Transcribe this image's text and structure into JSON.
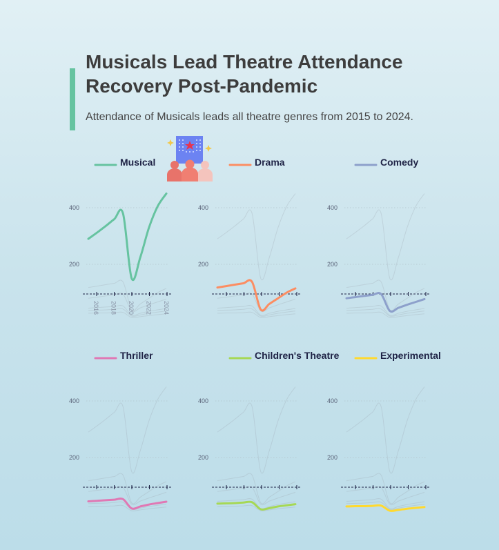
{
  "header": {
    "title": "Musicals Lead Theatre Attendance Recovery Post-Pandemic",
    "subtitle": "Attendance of Musicals leads all theatre genres from 2015 to 2024."
  },
  "illustration": {
    "icon": "theatre-audience-icon"
  },
  "chart_data": {
    "type": "line",
    "layout": "small-multiples",
    "x": [
      2015,
      2016,
      2017,
      2018,
      2019,
      2020,
      2021,
      2022,
      2023,
      2024
    ],
    "ylim": [
      0,
      460
    ],
    "yticks": [
      200,
      400
    ],
    "xticks": [
      2016,
      2018,
      2020,
      2022,
      2024
    ],
    "grid": true,
    "series": [
      {
        "name": "Musical",
        "color": "#66c3a0",
        "values": [
          290,
          312,
          335,
          360,
          380,
          150,
          225,
          330,
          405,
          450
        ]
      },
      {
        "name": "Drama",
        "color": "#fc8d62",
        "values": [
          118,
          123,
          128,
          133,
          138,
          40,
          60,
          80,
          100,
          115
        ]
      },
      {
        "name": "Comedy",
        "color": "#8da0cb",
        "values": [
          80,
          84,
          88,
          92,
          95,
          35,
          46,
          57,
          67,
          77
        ]
      },
      {
        "name": "Thriller",
        "color": "#e078b4",
        "values": [
          45,
          47,
          49,
          51,
          53,
          20,
          27,
          34,
          39,
          44
        ]
      },
      {
        "name": "Children's Theatre",
        "color": "#a6d854",
        "values": [
          37,
          38,
          39,
          41,
          42,
          17,
          21,
          27,
          31,
          35
        ]
      },
      {
        "name": "Experimental",
        "color": "#ffd92f",
        "values": [
          27,
          28,
          28,
          29,
          30,
          12,
          15,
          19,
          22,
          25
        ]
      }
    ]
  }
}
